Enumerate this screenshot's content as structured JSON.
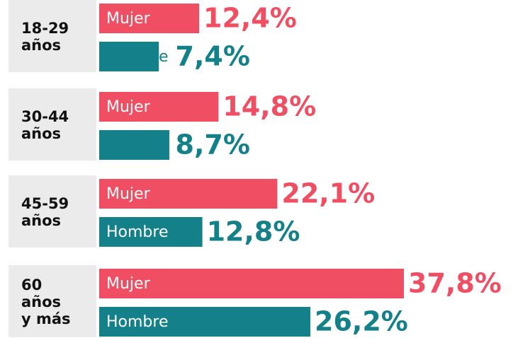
{
  "chart_data": {
    "type": "bar",
    "orientation": "horizontal",
    "categories": [
      "18-29\naños",
      "30-44\naños",
      "45-59\naños",
      "60\naños\ny más"
    ],
    "series": [
      {
        "name": "Mujer",
        "color": "#f04e63",
        "values": [
          12.4,
          14.8,
          22.1,
          37.8
        ],
        "value_labels": [
          "12,4%",
          "14,8%",
          "22,1%",
          "37,8%"
        ]
      },
      {
        "name": "Hombre",
        "color": "#13808a",
        "values": [
          7.4,
          8.7,
          12.8,
          26.2
        ],
        "value_labels": [
          "7,4%",
          "8,7%",
          "12,8%",
          "26,2%"
        ]
      }
    ]
  }
}
